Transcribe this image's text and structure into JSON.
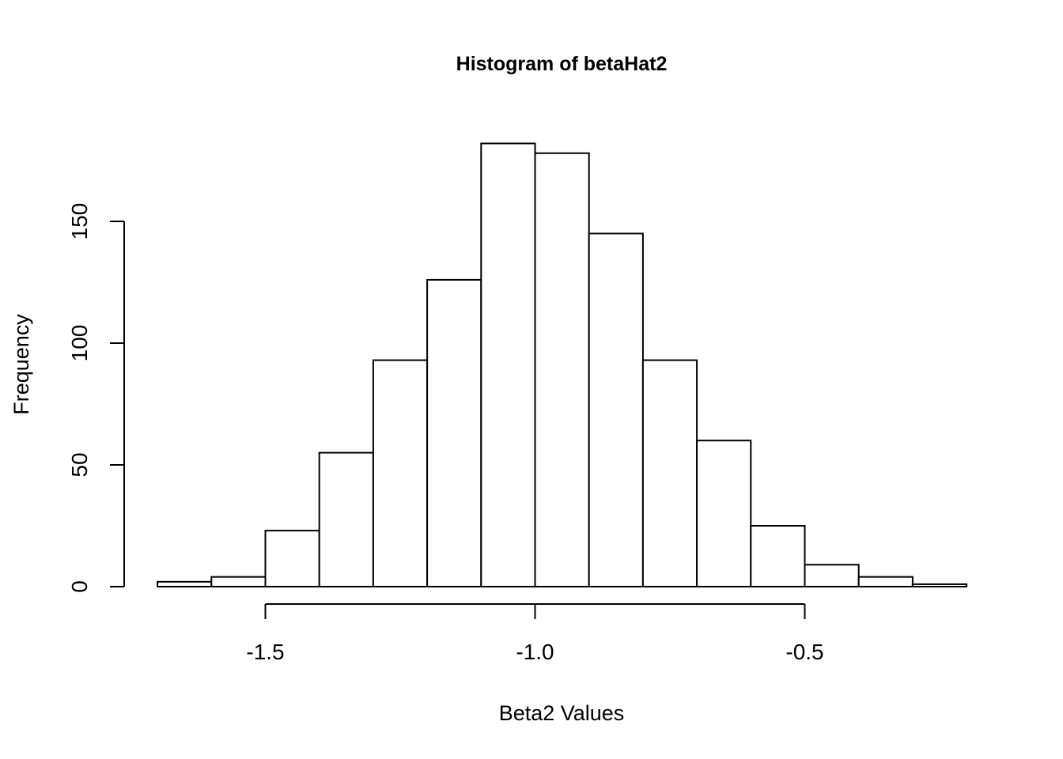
{
  "chart_data": {
    "type": "bar",
    "subtype": "histogram",
    "title": "Histogram of betaHat2",
    "xlabel": "Beta2 Values",
    "ylabel": "Frequency",
    "bins": [
      {
        "start": -1.7,
        "end": -1.6,
        "count": 2
      },
      {
        "start": -1.6,
        "end": -1.5,
        "count": 4
      },
      {
        "start": -1.5,
        "end": -1.4,
        "count": 23
      },
      {
        "start": -1.4,
        "end": -1.3,
        "count": 55
      },
      {
        "start": -1.3,
        "end": -1.2,
        "count": 93
      },
      {
        "start": -1.2,
        "end": -1.1,
        "count": 126
      },
      {
        "start": -1.1,
        "end": -1.0,
        "count": 182
      },
      {
        "start": -1.0,
        "end": -0.9,
        "count": 178
      },
      {
        "start": -0.9,
        "end": -0.8,
        "count": 145
      },
      {
        "start": -0.8,
        "end": -0.7,
        "count": 93
      },
      {
        "start": -0.7,
        "end": -0.6,
        "count": 60
      },
      {
        "start": -0.6,
        "end": -0.5,
        "count": 25
      },
      {
        "start": -0.5,
        "end": -0.4,
        "count": 9
      },
      {
        "start": -0.4,
        "end": -0.3,
        "count": 4
      },
      {
        "start": -0.3,
        "end": -0.2,
        "count": 1
      }
    ],
    "x_ticks": [
      -1.5,
      -1.0,
      -0.5
    ],
    "x_tick_labels": [
      "-1.5",
      "-1.0",
      "-0.5"
    ],
    "y_ticks": [
      0,
      50,
      100,
      150
    ],
    "y_tick_labels": [
      "0",
      "50",
      "100",
      "150"
    ],
    "xlim": [
      -1.7,
      -0.2
    ],
    "ylim": [
      0,
      182
    ],
    "grid": false,
    "legend": "none",
    "colors": {
      "bar_fill": "#ffffff",
      "bar_stroke": "#000000"
    }
  }
}
